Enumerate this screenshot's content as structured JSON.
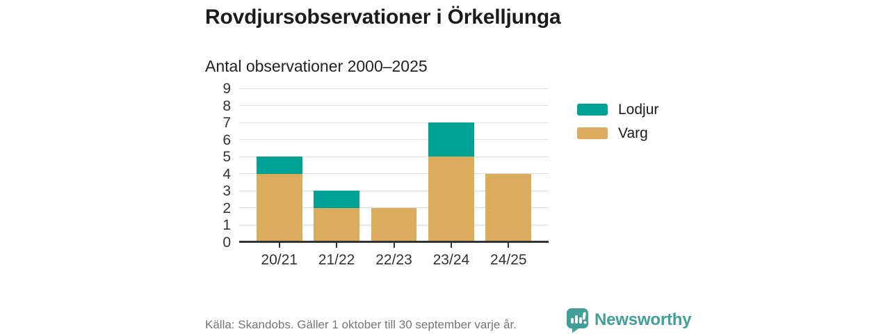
{
  "title": "Rovdjursobservationer i Örkelljunga",
  "subtitle": "Antal observationer 2000–2025",
  "legend": {
    "items": [
      {
        "label": "Lodjur",
        "color": "#00a296"
      },
      {
        "label": "Varg",
        "color": "#dbac5e"
      }
    ]
  },
  "footer": {
    "source": "Källa: Skandobs. Gäller 1 oktober till 30 september varje år.",
    "brand": "Newsworthy"
  },
  "colors": {
    "lodjur": "#00a296",
    "varg": "#dbac5e",
    "grid": "#dddddd",
    "axis": "#333333",
    "title_text": "#1b1b1b",
    "muted_text": "#757575",
    "brand_teal": "#419e98"
  },
  "chart_data": {
    "type": "bar",
    "stacked": true,
    "title": "Rovdjursobservationer i Örkelljunga",
    "subtitle": "Antal observationer 2000–2025",
    "categories": [
      "20/21",
      "21/22",
      "22/23",
      "23/24",
      "24/25"
    ],
    "series": [
      {
        "name": "Varg",
        "color": "#dbac5e",
        "values": [
          4,
          2,
          2,
          5,
          4
        ]
      },
      {
        "name": "Lodjur",
        "color": "#00a296",
        "values": [
          1,
          1,
          0,
          2,
          0
        ]
      }
    ],
    "totals": [
      5,
      3,
      2,
      7,
      4
    ],
    "xlabel": "",
    "ylabel": "",
    "ylim": [
      0,
      9
    ],
    "yticks": [
      0,
      1,
      2,
      3,
      4,
      5,
      6,
      7,
      8,
      9
    ],
    "grid": true,
    "legend_entries": [
      "Lodjur",
      "Varg"
    ],
    "legend_position": "right"
  }
}
